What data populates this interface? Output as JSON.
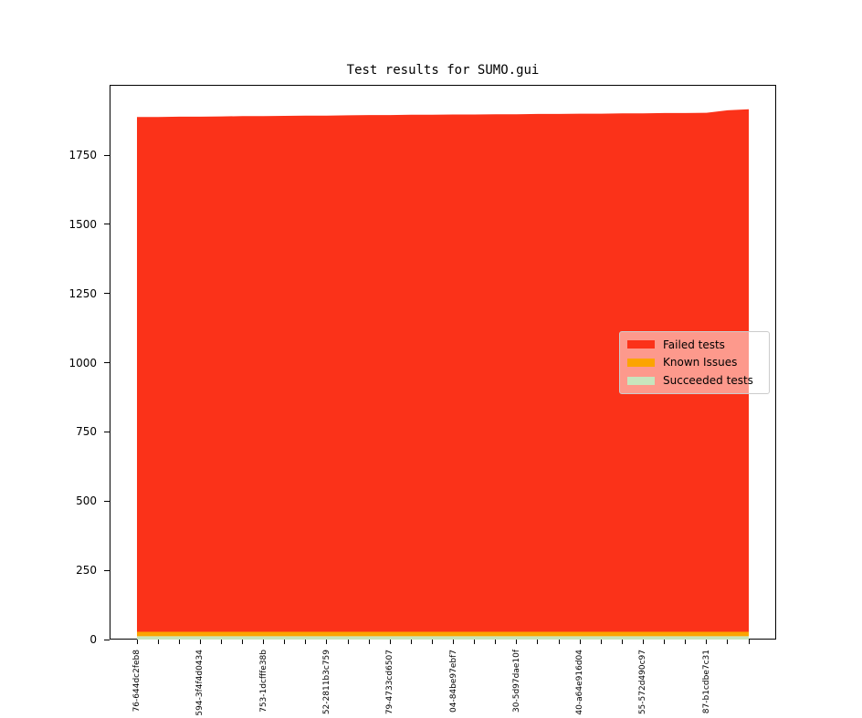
{
  "title": "Test results for SUMO.gui",
  "legend": {
    "items": [
      {
        "label": "Failed tests",
        "color": "#fb3219"
      },
      {
        "label": "Known Issues",
        "color": "#fca400"
      },
      {
        "label": "Succeeded tests",
        "color": "#c7e5bd"
      }
    ]
  },
  "chart_data": {
    "type": "area",
    "stacked": true,
    "title": "Test results for SUMO.gui",
    "xlabel": "",
    "ylabel": "",
    "ylim": [
      0,
      2000
    ],
    "yticks": [
      0,
      250,
      500,
      750,
      1000,
      1250,
      1500,
      1750
    ],
    "x_tick_count": 30,
    "x_label_interval": 3,
    "x_tick_labels": [
      "76-644dc2feb8",
      "594-3f4f4d0434",
      "753-1dcfffe38b",
      "52-2811b3c759",
      "79-4733cd6507",
      "04-84be97ebf7",
      "30-5d97dae10f",
      "40-a64e916d04",
      "55-572d490c97",
      "87-b1cdbe7c31"
    ],
    "legend_position": "center right",
    "grid": false,
    "series": [
      {
        "name": "Succeeded tests",
        "color": "#c7e5bd",
        "values": [
          12,
          12,
          12,
          12,
          12,
          12,
          12,
          12,
          12,
          12,
          12,
          12,
          12,
          12,
          12,
          12,
          12,
          12,
          12,
          12,
          12,
          12,
          12,
          12,
          12,
          12,
          12,
          12,
          12,
          12
        ]
      },
      {
        "name": "Known Issues",
        "color": "#fca400",
        "values": [
          16,
          16,
          16,
          16,
          16,
          16,
          16,
          16,
          16,
          16,
          16,
          16,
          16,
          16,
          16,
          16,
          16,
          16,
          16,
          16,
          16,
          16,
          16,
          16,
          16,
          16,
          16,
          16,
          16,
          16
        ]
      },
      {
        "name": "Failed tests",
        "color": "#fb3219",
        "values": [
          1860,
          1860,
          1861,
          1861,
          1862,
          1863,
          1863,
          1864,
          1865,
          1865,
          1866,
          1867,
          1867,
          1868,
          1868,
          1869,
          1869,
          1870,
          1870,
          1871,
          1871,
          1872,
          1872,
          1873,
          1873,
          1874,
          1874,
          1875,
          1884,
          1888
        ]
      }
    ]
  }
}
